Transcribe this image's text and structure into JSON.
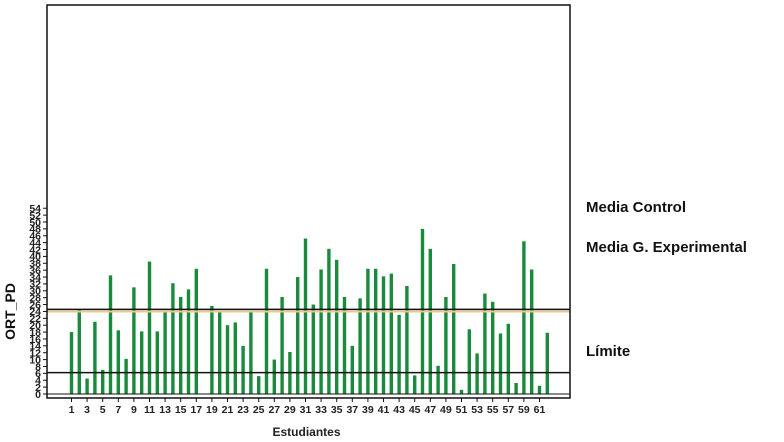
{
  "chart_data": {
    "type": "bar",
    "title": "",
    "xlabel": "Estudiantes",
    "ylabel": "ORT_PD",
    "ylim": [
      0,
      56
    ],
    "ytick_step": 2,
    "ytick_max": 54,
    "grid": false,
    "legend": "none",
    "bar_color": "#1a8a3c",
    "x": [
      1,
      2,
      3,
      4,
      5,
      6,
      7,
      8,
      9,
      10,
      11,
      12,
      13,
      14,
      15,
      16,
      17,
      18,
      19,
      20,
      21,
      22,
      23,
      24,
      25,
      26,
      27,
      28,
      29,
      30,
      31,
      32,
      33,
      34,
      35,
      36,
      37,
      38,
      39,
      40,
      41,
      42,
      43,
      44,
      45,
      46,
      47,
      48,
      49,
      50,
      51,
      52,
      53,
      54,
      55,
      56,
      57,
      58,
      59,
      60,
      61,
      62
    ],
    "x_tick_labels": [
      "1",
      "3",
      "5",
      "7",
      "9",
      "11",
      "13",
      "15",
      "17",
      "19",
      "21",
      "23",
      "25",
      "27",
      "29",
      "31",
      "33",
      "35",
      "37",
      "39",
      "41",
      "43",
      "45",
      "47",
      "49",
      "51",
      "53",
      "55",
      "57",
      "59",
      "61"
    ],
    "series": [
      {
        "values": [
          18,
          24.5,
          4.5,
          21,
          7,
          34.5,
          18.5,
          10.2,
          31,
          18.2,
          38.5,
          18.2,
          23.8,
          32.2,
          28.2,
          30.4,
          36.4,
          0,
          25.6,
          23.8,
          20,
          20.8,
          14,
          24,
          5.2,
          36.4,
          10,
          28.2,
          12.2,
          34,
          45.2,
          26,
          36.2,
          42.2,
          39,
          28.2,
          14,
          27.8,
          36.4,
          36.4,
          34.2,
          35,
          23,
          31.4,
          5.4,
          48,
          42.2,
          8.2,
          28.2,
          37.8,
          1.2,
          18.8,
          11.8,
          29.2,
          26.8,
          17.6,
          20.4,
          3.2,
          44.4,
          36.2,
          2.4,
          17.8
        ]
      }
    ],
    "reference_lines": [
      {
        "name": "Media Control",
        "value": 24.6,
        "color": "#111111"
      },
      {
        "name": "Media G. Experimental",
        "value": 24.0,
        "color": "#e8c890"
      },
      {
        "name": "Límite",
        "value": 6.2,
        "color": "#111111"
      }
    ]
  }
}
